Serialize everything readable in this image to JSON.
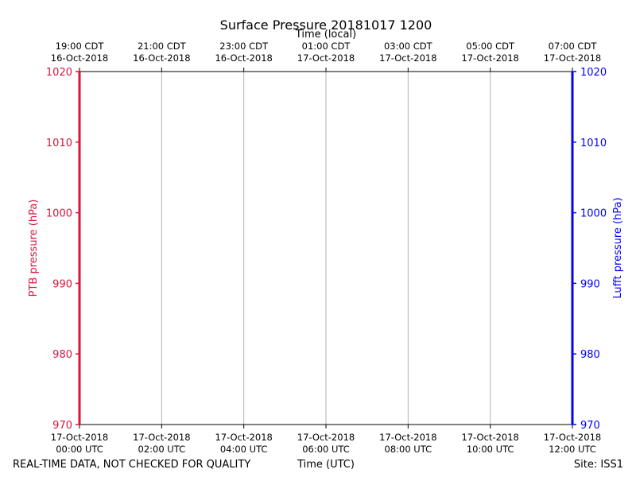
{
  "chart_data": {
    "type": "line",
    "title": "Surface Pressure 20181017 1200",
    "x_top_label": "Time (local)",
    "x_bottom_label": "Time (UTC)",
    "y_left_label": "PTB pressure (hPa)",
    "y_right_label": "Lufft pressure (hPa)",
    "ylim": [
      970,
      1020
    ],
    "y_ticks": [
      970,
      980,
      990,
      1000,
      1010,
      1020
    ],
    "x_ticks_utc": [
      [
        "17-Oct-2018",
        "00:00 UTC"
      ],
      [
        "17-Oct-2018",
        "02:00 UTC"
      ],
      [
        "17-Oct-2018",
        "04:00 UTC"
      ],
      [
        "17-Oct-2018",
        "06:00 UTC"
      ],
      [
        "17-Oct-2018",
        "08:00 UTC"
      ],
      [
        "17-Oct-2018",
        "10:00 UTC"
      ],
      [
        "17-Oct-2018",
        "12:00 UTC"
      ]
    ],
    "x_ticks_local": [
      [
        "19:00 CDT",
        "16-Oct-2018"
      ],
      [
        "21:00 CDT",
        "16-Oct-2018"
      ],
      [
        "23:00 CDT",
        "16-Oct-2018"
      ],
      [
        "01:00 CDT",
        "17-Oct-2018"
      ],
      [
        "03:00 CDT",
        "17-Oct-2018"
      ],
      [
        "05:00 CDT",
        "17-Oct-2018"
      ],
      [
        "07:00 CDT",
        "17-Oct-2018"
      ]
    ],
    "grid": "vertical",
    "series": [
      {
        "values": [],
        "color": "#dc143c"
      },
      {
        "values": [],
        "color": "#0000ff"
      }
    ],
    "colors": {
      "left_axis": "#dc143c",
      "right_axis": "#0000ff",
      "grid": "#b0b0b0"
    }
  },
  "footer": {
    "left": "REAL-TIME DATA, NOT CHECKED FOR QUALITY",
    "right": "Site: ISS1"
  }
}
